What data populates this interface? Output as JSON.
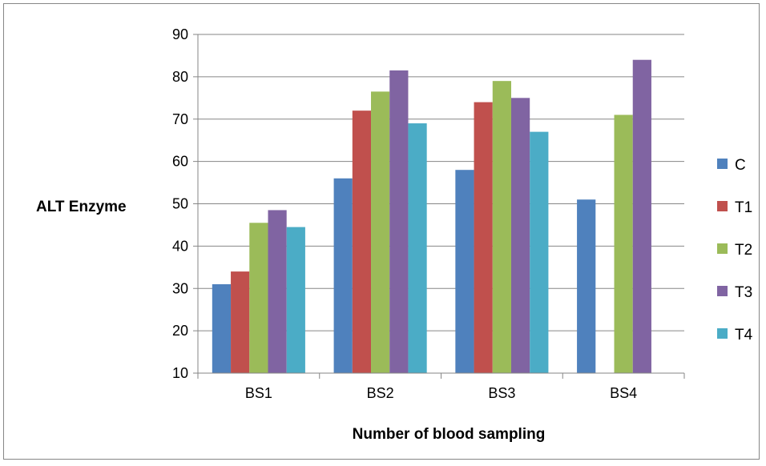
{
  "chart_data": {
    "type": "bar",
    "title": "",
    "xlabel": "Number of blood sampling",
    "ylabel": "ALT Enzyme",
    "ylim": [
      10,
      90
    ],
    "yticks": [
      10,
      20,
      30,
      40,
      50,
      60,
      70,
      80,
      90
    ],
    "grid": "horizontal",
    "legend_position": "right",
    "categories": [
      "BS1",
      "BS2",
      "BS3",
      "BS4"
    ],
    "series": [
      {
        "name": "C",
        "color": "#4F81BD",
        "values": [
          31,
          56,
          58,
          51
        ]
      },
      {
        "name": "T1",
        "color": "#C0504D",
        "values": [
          34,
          72,
          74,
          null
        ]
      },
      {
        "name": "T2",
        "color": "#9BBB59",
        "values": [
          45.5,
          76.5,
          79,
          71
        ]
      },
      {
        "name": "T3",
        "color": "#8064A2",
        "values": [
          48.5,
          81.5,
          75,
          84
        ]
      },
      {
        "name": "T4",
        "color": "#4BACC6",
        "values": [
          44.5,
          69,
          67,
          null
        ]
      }
    ]
  }
}
